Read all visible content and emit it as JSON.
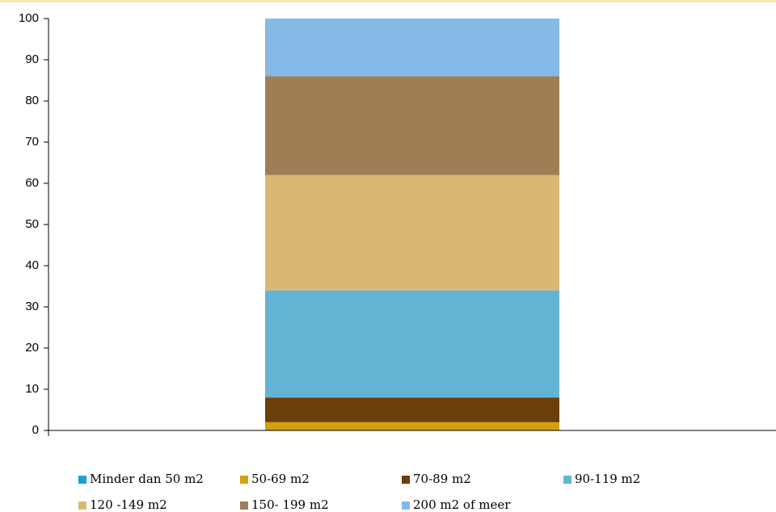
{
  "chart_data": {
    "type": "stacked_bar",
    "categories": [
      null
    ],
    "series": [
      {
        "name": "Minder dan 50 m2",
        "color": "#1a9fd8",
        "values": [
          0
        ]
      },
      {
        "name": "50-69 m2",
        "color": "#d4a010",
        "values": [
          2
        ]
      },
      {
        "name": "70-89 m2",
        "color": "#6b3f0a",
        "values": [
          6
        ]
      },
      {
        "name": "90-119 m2",
        "color": "#63b4d4",
        "values": [
          26
        ]
      },
      {
        "name": "120 -149 m2",
        "color": "#d9b873",
        "values": [
          28
        ]
      },
      {
        "name": "150- 199 m2",
        "color": "#a07e55",
        "values": [
          24
        ]
      },
      {
        "name": "200 m2 of meer",
        "color": "#85b9e6",
        "values": [
          14
        ]
      }
    ],
    "ylim": [
      0,
      100
    ],
    "yticks": [
      0,
      10,
      20,
      30,
      40,
      50,
      60,
      70,
      80,
      90,
      100
    ],
    "legend": "bottom"
  }
}
